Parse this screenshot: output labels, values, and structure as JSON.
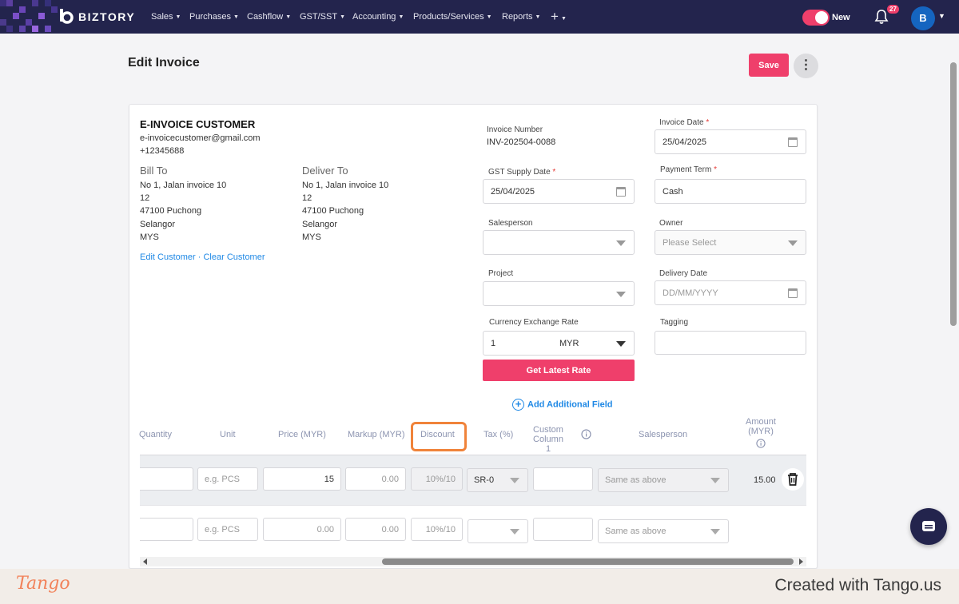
{
  "nav": {
    "brand": "BIZTORY",
    "items": [
      {
        "label": "Sales"
      },
      {
        "label": "Purchases"
      },
      {
        "label": "Cashflow"
      },
      {
        "label": "GST/SST"
      },
      {
        "label": "Accounting"
      },
      {
        "label": "Products/Services"
      },
      {
        "label": "Reports"
      }
    ],
    "add_label": "+",
    "toggle_label": "New",
    "notification_count": "27",
    "avatar_initial": "B",
    "colors": {
      "nav_bg": "#23244d",
      "accent": "#ef3f6b",
      "link": "#1e88e5"
    }
  },
  "page": {
    "title": "Edit Invoice",
    "save_label": "Save",
    "more_label": "⋮"
  },
  "customer": {
    "name": "E-INVOICE CUSTOMER",
    "email": "e-invoicecustomer@gmail.com",
    "phone": "+12345688",
    "bill_to": {
      "heading": "Bill To",
      "lines": [
        "No 1, Jalan invoice 10",
        "12",
        "47100 Puchong",
        "Selangor",
        "MYS"
      ]
    },
    "deliver_to": {
      "heading": "Deliver To",
      "lines": [
        "No 1, Jalan invoice 10",
        "12",
        "47100 Puchong",
        "Selangor",
        "MYS"
      ]
    },
    "edit_link": "Edit Customer",
    "separator": " · ",
    "clear_link": "Clear Customer"
  },
  "form": {
    "invoice_number_label": "Invoice Number",
    "invoice_number": "INV-202504-0088",
    "invoice_date_label": "Invoice Date",
    "invoice_date": "25/04/2025",
    "gst_supply_date_label": "GST Supply Date",
    "gst_supply_date": "25/04/2025",
    "payment_term_label": "Payment Term",
    "payment_term": "Cash",
    "salesperson_label": "Salesperson",
    "owner_label": "Owner",
    "owner_placeholder": "Please Select",
    "project_label": "Project",
    "delivery_date_label": "Delivery Date",
    "delivery_date_placeholder": "DD/MM/YYYY",
    "currency_rate_label": "Currency Exchange Rate",
    "currency_rate": "1",
    "currency": "MYR",
    "tagging_label": "Tagging",
    "required_mark": "*",
    "get_rate_label": "Get Latest Rate",
    "add_field_label": "Add Additional Field"
  },
  "table": {
    "headers": {
      "quantity": "Quantity",
      "unit": "Unit",
      "price": "Price (MYR)",
      "markup": "Markup (MYR)",
      "discount": "Discount",
      "tax": "Tax (%)",
      "custom1": "Custom Column 1",
      "salesperson": "Salesperson",
      "amount": "Amount (MYR)"
    },
    "rows": [
      {
        "unit_ph": "e.g. PCS",
        "price": "15",
        "markup": "0.00",
        "discount_ph": "10%/10",
        "tax": "SR-0",
        "salesperson_ph": "Same as above",
        "amount": "15.00"
      },
      {
        "unit_ph": "e.g. PCS",
        "price": "0.00",
        "markup": "0.00",
        "discount_ph": "10%/10",
        "tax": "",
        "salesperson_ph": "Same as above",
        "amount": ""
      }
    ]
  },
  "footer": {
    "logo_text": "Tango",
    "created_text": "Created with Tango.us"
  }
}
